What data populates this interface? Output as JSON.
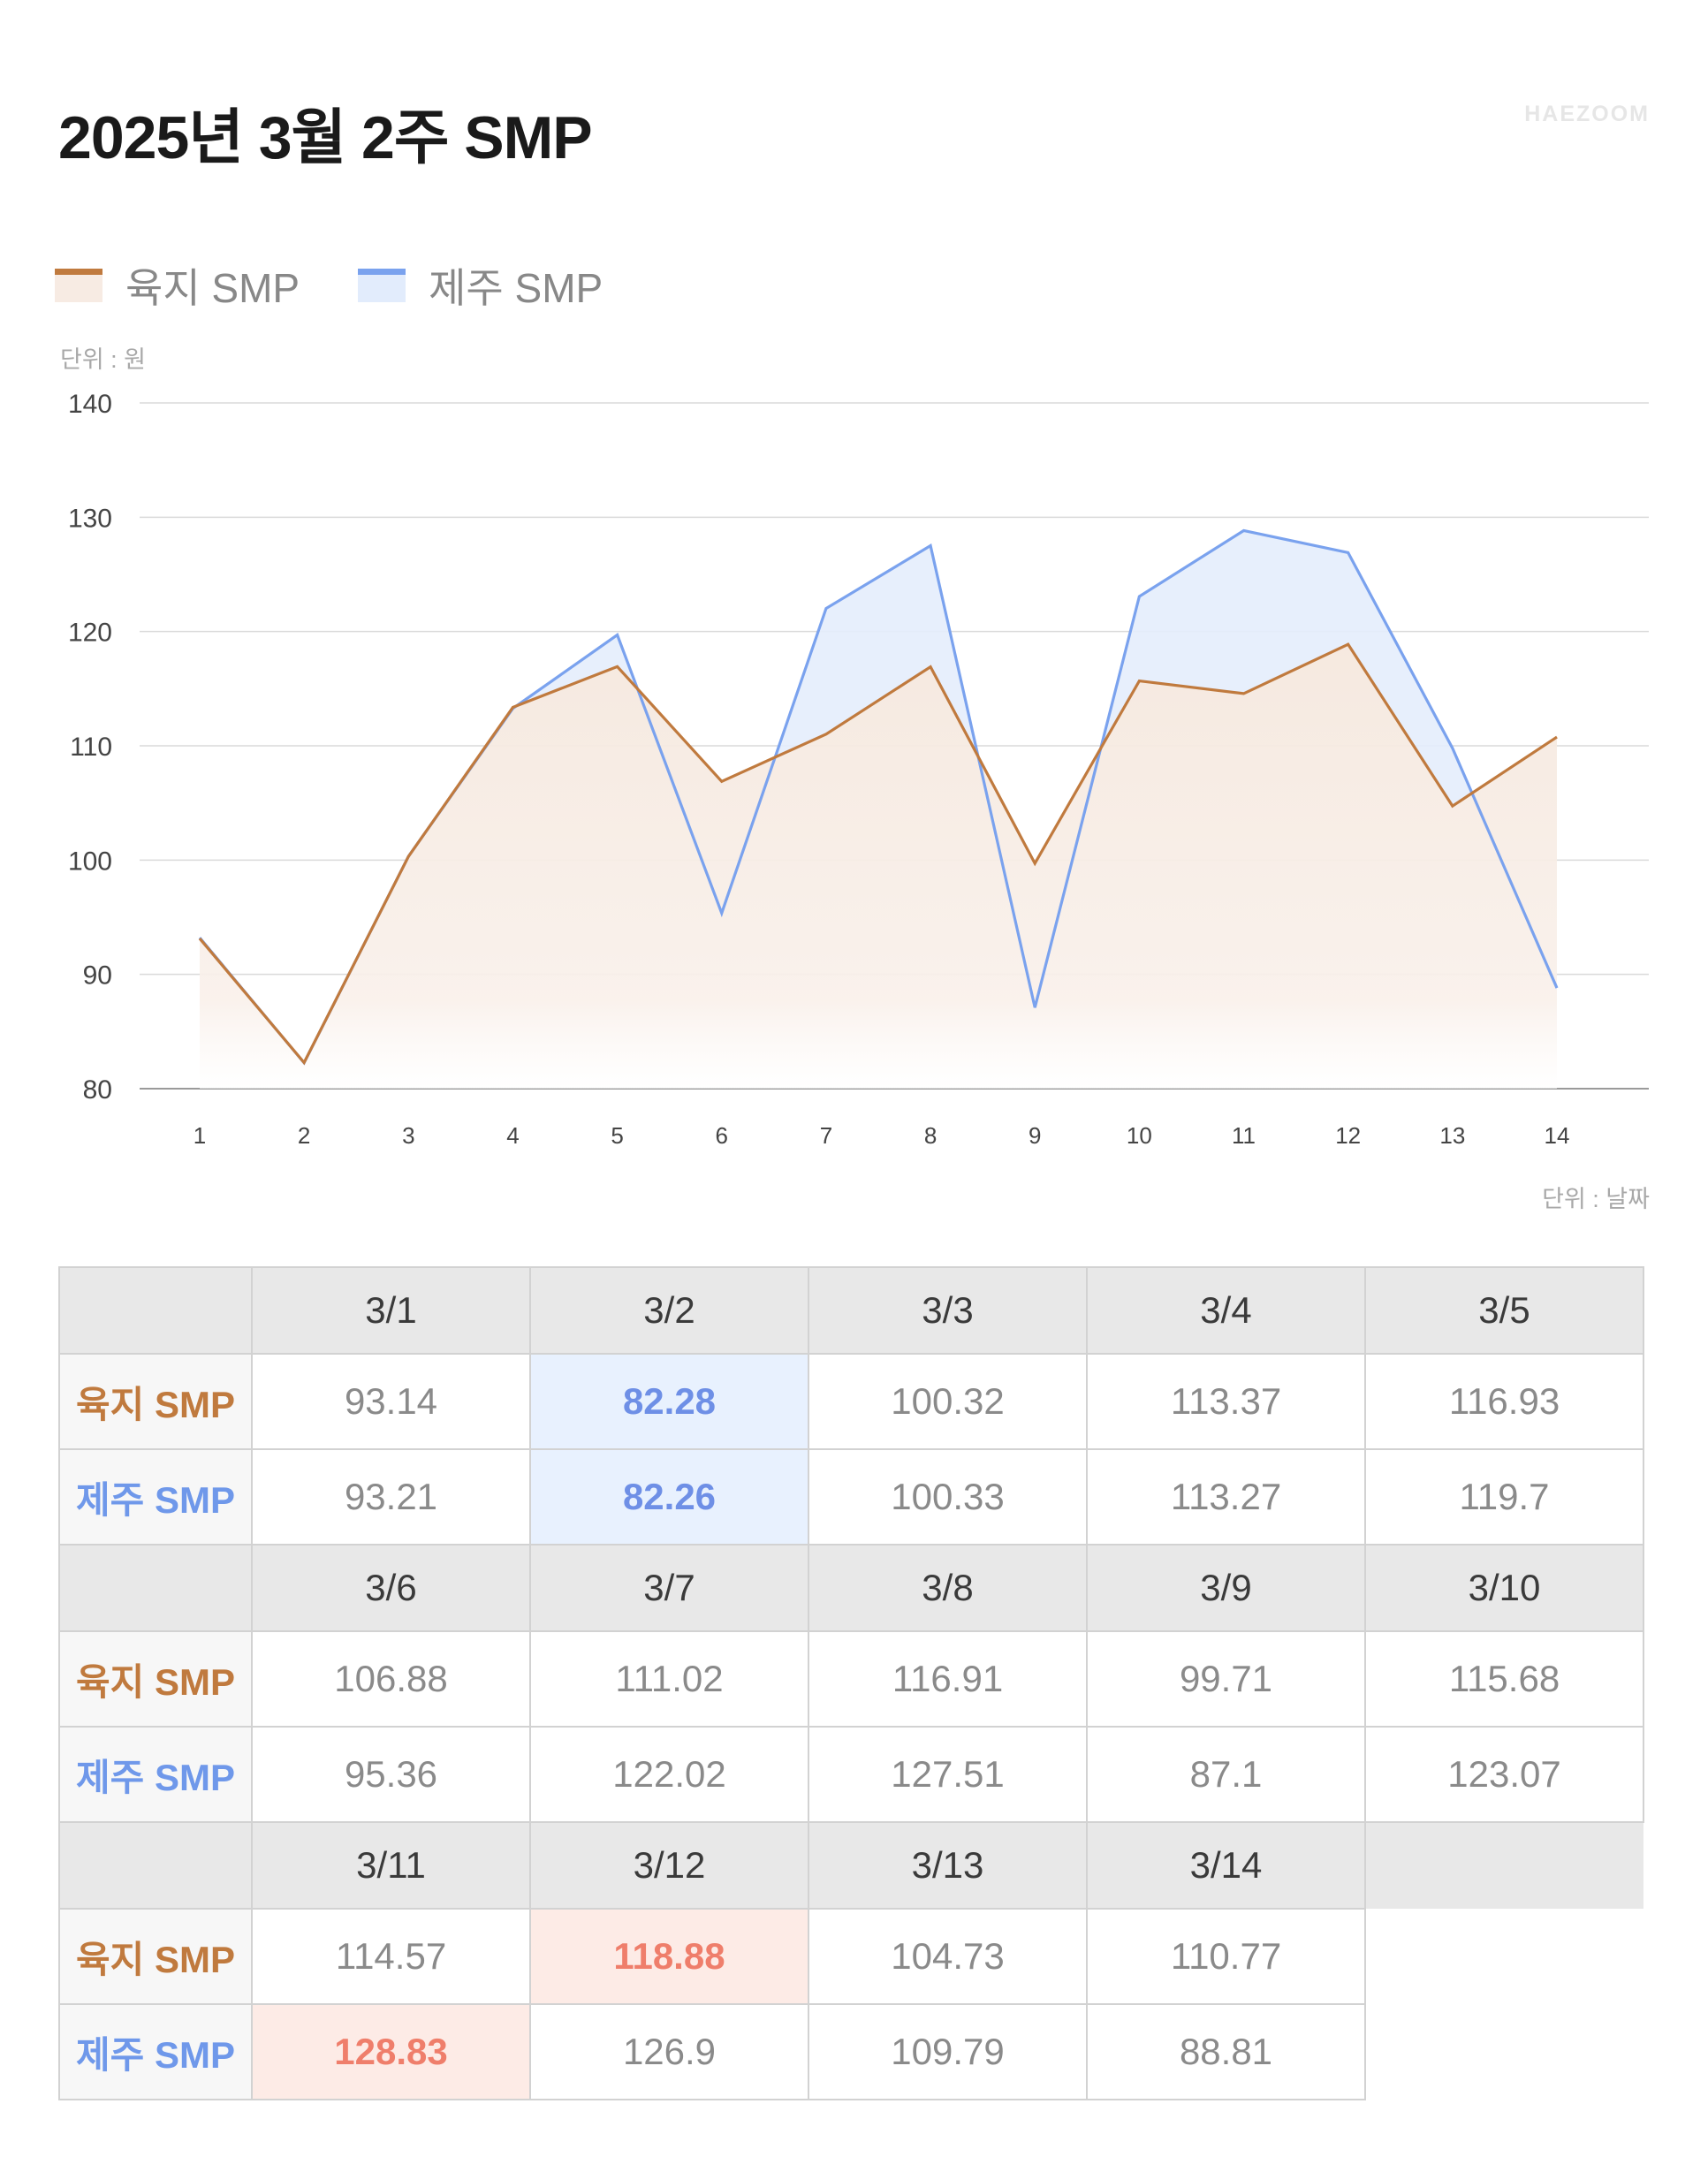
{
  "header": {
    "title": "2025년 3월 2주 SMP",
    "brand": "HAEZOOM"
  },
  "legend": [
    {
      "label": "육지 SMP",
      "color": "#c07a3e",
      "fill": "#f7ebe3"
    },
    {
      "label": "제주 SMP",
      "color": "#7aa2ee",
      "fill": "#e2ecfc"
    }
  ],
  "unit_y": "단위 : 원",
  "unit_x": "단위 : 날짜",
  "chart_data": {
    "type": "area",
    "x": [
      1,
      2,
      3,
      4,
      5,
      6,
      7,
      8,
      9,
      10,
      11,
      12,
      13,
      14
    ],
    "ylim": [
      80,
      140
    ],
    "yticks": [
      80,
      90,
      100,
      110,
      120,
      130,
      140
    ],
    "grid": true,
    "legend_position": "top-left",
    "series": [
      {
        "name": "육지 SMP",
        "color": "#c07a3e",
        "values": [
          93.14,
          82.28,
          100.32,
          113.37,
          116.93,
          106.88,
          111.02,
          116.91,
          99.71,
          115.68,
          114.57,
          118.88,
          104.73,
          110.77
        ]
      },
      {
        "name": "제주 SMP",
        "color": "#7aa2ee",
        "values": [
          93.21,
          82.26,
          100.33,
          113.27,
          119.7,
          95.36,
          122.02,
          127.51,
          87.1,
          123.07,
          128.83,
          126.9,
          109.79,
          88.81
        ]
      }
    ]
  },
  "table": {
    "row_labels": [
      "육지 SMP",
      "제주 SMP"
    ],
    "blocks": [
      {
        "dates": [
          "3/1",
          "3/2",
          "3/3",
          "3/4",
          "3/5"
        ],
        "land": [
          "93.14",
          "82.28",
          "100.32",
          "113.37",
          "116.93"
        ],
        "jeju": [
          "93.21",
          "82.26",
          "100.33",
          "113.27",
          "119.7"
        ]
      },
      {
        "dates": [
          "3/6",
          "3/7",
          "3/8",
          "3/9",
          "3/10"
        ],
        "land": [
          "106.88",
          "111.02",
          "116.91",
          "99.71",
          "115.68"
        ],
        "jeju": [
          "95.36",
          "122.02",
          "127.51",
          "87.1",
          "123.07"
        ]
      },
      {
        "dates": [
          "3/11",
          "3/12",
          "3/13",
          "3/14"
        ],
        "land": [
          "114.57",
          "118.88",
          "104.73",
          "110.77"
        ],
        "jeju": [
          "128.83",
          "126.9",
          "109.79",
          "88.81"
        ]
      }
    ],
    "highlights": {
      "lowest": {
        "land": "3/2",
        "jeju": "3/2"
      },
      "highest": {
        "land": "3/12",
        "jeju": "3/11"
      }
    }
  }
}
